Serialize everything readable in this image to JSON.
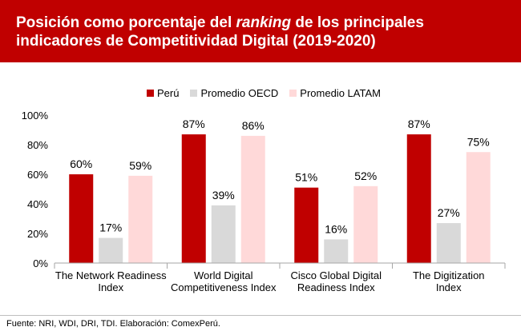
{
  "title": {
    "part1": "Posición como porcentaje del ",
    "part2": "ranking",
    "part3": " de los principales indicadores de Competitividad Digital (2019-2020)"
  },
  "source": "Fuente: NRI, WDI, DRI, TDI. Elaboración: ComexPerú.",
  "colors": {
    "header": "#c00000",
    "peru": "#c00000",
    "oecd": "#d9d9d9",
    "latam": "#ffd9d9"
  },
  "chart_data": {
    "type": "bar",
    "categories": [
      [
        "The Network Readiness",
        "Index"
      ],
      [
        "World Digital",
        "Competitiveness Index"
      ],
      [
        "Cisco Global Digital",
        "Readiness Index"
      ],
      [
        "The Digitization",
        "Index"
      ]
    ],
    "series": [
      {
        "name": "Perú",
        "values": [
          60,
          87,
          51,
          87
        ],
        "labels": [
          "60%",
          "87%",
          "51%",
          "87%"
        ]
      },
      {
        "name": "Promedio OECD",
        "values": [
          17,
          39,
          16,
          27
        ],
        "labels": [
          "17%",
          "39%",
          "16%",
          "27%"
        ]
      },
      {
        "name": "Promedio LATAM",
        "values": [
          59,
          86,
          52,
          75
        ],
        "labels": [
          "59%",
          "86%",
          "52%",
          "75%"
        ]
      }
    ],
    "ylim": [
      0,
      100
    ],
    "yticks": [
      "0%",
      "20%",
      "40%",
      "60%",
      "80%",
      "100%"
    ],
    "grid": false,
    "legend": "top-center"
  }
}
